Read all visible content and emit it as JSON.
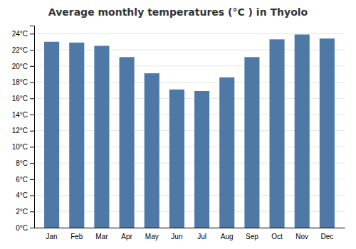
{
  "chart_data": {
    "type": "bar",
    "title": "Average monthly temperatures (°C ) in Thyolo",
    "categories": [
      "Jan",
      "Feb",
      "Mar",
      "Apr",
      "May",
      "Jun",
      "Jul",
      "Aug",
      "Sep",
      "Oct",
      "Nov",
      "Dec"
    ],
    "values": [
      23.0,
      22.9,
      22.5,
      21.1,
      19.1,
      17.1,
      16.9,
      18.6,
      21.1,
      23.3,
      23.9,
      23.4
    ],
    "ylim": [
      0,
      25
    ],
    "yticks": [
      {
        "value": 0,
        "label": "0°C"
      },
      {
        "value": 2,
        "label": "2°C"
      },
      {
        "value": 4,
        "label": "4°C"
      },
      {
        "value": 6,
        "label": "6°C"
      },
      {
        "value": 8,
        "label": "8°C"
      },
      {
        "value": 10,
        "label": "10°C"
      },
      {
        "value": 12,
        "label": "12°C"
      },
      {
        "value": 14,
        "label": "14°C"
      },
      {
        "value": 16,
        "label": "16°C"
      },
      {
        "value": 18,
        "label": "18°C"
      },
      {
        "value": 20,
        "label": "20°C"
      },
      {
        "value": 22,
        "label": "22°C"
      },
      {
        "value": 24,
        "label": "24°C"
      }
    ],
    "grid": true
  }
}
